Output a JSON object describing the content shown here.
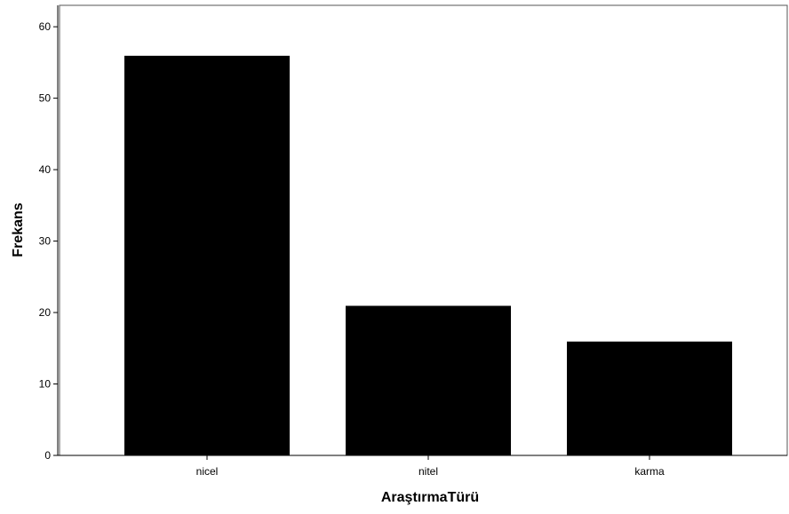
{
  "chart_data": {
    "type": "bar",
    "categories": [
      "nicel",
      "nitel",
      "karma"
    ],
    "values": [
      56,
      21,
      16
    ],
    "xlabel": "AraştırmaTürü",
    "ylabel": "Frekans",
    "ylim": [
      0,
      63
    ],
    "yticks": [
      0,
      10,
      20,
      30,
      40,
      50,
      60
    ],
    "ytick_labels": [
      "0",
      "10",
      "20",
      "30",
      "40",
      "50",
      "60"
    ],
    "grid": false,
    "legend": "none",
    "colors": {
      "bar_fill": "#000000",
      "bar_stroke": "#ffffff",
      "axis": "#000000",
      "frame": "#555555",
      "background": "#ffffff"
    }
  }
}
